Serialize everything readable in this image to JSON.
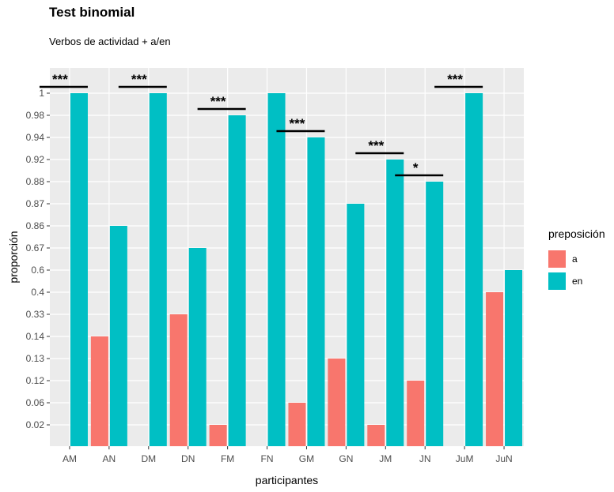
{
  "chart_data": {
    "type": "bar",
    "title": "Test binomial",
    "subtitle": "Verbos de actividad + a/en",
    "xlabel": "participantes",
    "ylabel": "proporción",
    "categories": [
      "AM",
      "AN",
      "DM",
      "DN",
      "FM",
      "FN",
      "GM",
      "GN",
      "JM",
      "JN",
      "JuM",
      "JuN"
    ],
    "y_tick_labels": [
      "0.02",
      "0.06",
      "0.12",
      "0.13",
      "0.14",
      "0.33",
      "0.4",
      "0.6",
      "0.67",
      "0.86",
      "0.87",
      "0.88",
      "0.92",
      "0.94",
      "0.98",
      "1"
    ],
    "series": [
      {
        "name": "a",
        "color": "#F8766D",
        "values": [
          null,
          "0.14",
          null,
          "0.33",
          "0.02",
          null,
          "0.06",
          "0.13",
          "0.02",
          "0.12",
          null,
          "0.4"
        ]
      },
      {
        "name": "en",
        "color": "#00BFC4",
        "values": [
          "1",
          "0.86",
          "1",
          "0.67",
          "0.98",
          "1",
          "0.94",
          "0.87",
          "0.92",
          "0.88",
          "1",
          "0.6"
        ]
      }
    ],
    "significance": [
      {
        "category": "AM",
        "label": "***"
      },
      {
        "category": "DM",
        "label": "***"
      },
      {
        "category": "FM",
        "label": "***"
      },
      {
        "category": "GM",
        "label": "***"
      },
      {
        "category": "JM",
        "label": "***"
      },
      {
        "category": "JN",
        "label": "*"
      },
      {
        "category": "JuM",
        "label": "***"
      }
    ],
    "legend": {
      "title": "preposición",
      "position": "right"
    },
    "grid": true,
    "panel_background": "#EBEBEB"
  }
}
